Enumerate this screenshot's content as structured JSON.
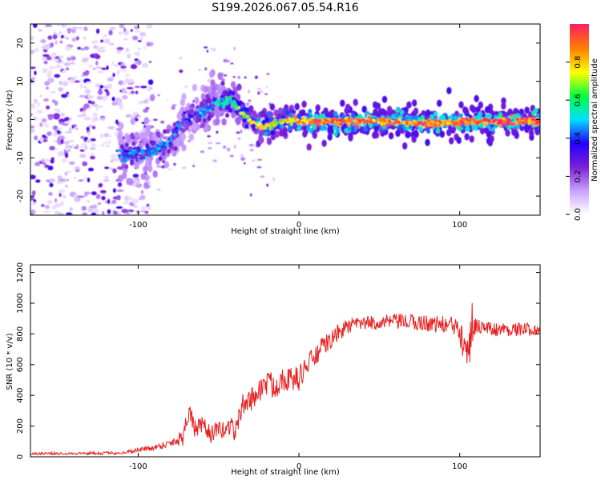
{
  "title": "S199.2026.067.05.54.R16",
  "chart_data": [
    {
      "type": "heatmap",
      "xlabel": "Height of straight line (km)",
      "ylabel": "Frequency (Hz)",
      "xlim": [
        -167,
        150
      ],
      "ylim": [
        -25,
        25
      ],
      "x_ticks": [
        -100,
        0,
        100
      ],
      "y_ticks": [
        -20,
        -10,
        0,
        10,
        20
      ],
      "colorbar": {
        "label": "Normalized spectral amplitude",
        "range": [
          0,
          1
        ],
        "ticks": [
          0.0,
          0.2,
          0.4,
          0.6,
          0.8
        ],
        "tick_labels": [
          "0.0",
          "0.2",
          "0.4",
          "0.6",
          "0.8"
        ],
        "colors": [
          "#ffffff",
          "#c8a0ff",
          "#7b1fd6",
          "#2200ff",
          "#00e0ff",
          "#00ff40",
          "#ffff00",
          "#ff8000",
          "#ff2060"
        ]
      },
      "ridge": {
        "x": [
          -112,
          -100,
          -90,
          -80,
          -72,
          -65,
          -58,
          -50,
          -42,
          -36,
          -30,
          -22,
          -15,
          -5,
          0,
          20,
          50,
          80,
          95,
          110,
          150
        ],
        "freq": [
          -10,
          -8.5,
          -8,
          -6,
          0,
          1,
          2.5,
          4.5,
          5,
          2,
          -0.5,
          -2,
          -1,
          0,
          -0.5,
          -0.5,
          -0.5,
          -1,
          -0.8,
          -0.4,
          -0.4
        ],
        "amplitude": [
          0.42,
          0.45,
          0.45,
          0.45,
          0.4,
          0.4,
          0.45,
          0.5,
          0.55,
          0.7,
          0.75,
          0.75,
          0.75,
          0.78,
          0.85,
          0.92,
          0.88,
          0.92,
          0.9,
          0.92,
          0.92
        ]
      }
    },
    {
      "type": "line",
      "xlabel": "Height of straight line (km)",
      "ylabel": "SNR (10 * v/v)",
      "xlim": [
        -167,
        150
      ],
      "ylim": [
        0,
        1250
      ],
      "x_ticks": [
        -100,
        0,
        100
      ],
      "y_ticks": [
        0,
        200,
        400,
        600,
        800,
        1000,
        1200
      ],
      "line_color": "#e82020",
      "trend": {
        "x": [
          -167,
          -110,
          -100,
          -90,
          -80,
          -72,
          -70,
          -68,
          -65,
          -60,
          -55,
          -50,
          -45,
          -42,
          -40,
          -35,
          -30,
          -25,
          -20,
          -15,
          -10,
          -5,
          0,
          5,
          10,
          15,
          20,
          25,
          30,
          40,
          60,
          80,
          90,
          100,
          105,
          110,
          120,
          150
        ],
        "snr": [
          20,
          25,
          45,
          60,
          90,
          130,
          250,
          300,
          180,
          200,
          150,
          170,
          180,
          220,
          150,
          340,
          370,
          430,
          480,
          460,
          520,
          500,
          510,
          600,
          650,
          720,
          760,
          810,
          850,
          870,
          880,
          870,
          860,
          850,
          820,
          860,
          830,
          830
        ]
      },
      "noise_amplitude": {
        "x": [
          -167,
          -110,
          -80,
          -72,
          -65,
          -40,
          -35,
          -15,
          0,
          20,
          40,
          95,
          100,
          103,
          106,
          110,
          150
        ],
        "amp": [
          8,
          10,
          25,
          60,
          60,
          60,
          70,
          90,
          80,
          60,
          45,
          60,
          120,
          250,
          280,
          50,
          40
        ]
      }
    }
  ]
}
